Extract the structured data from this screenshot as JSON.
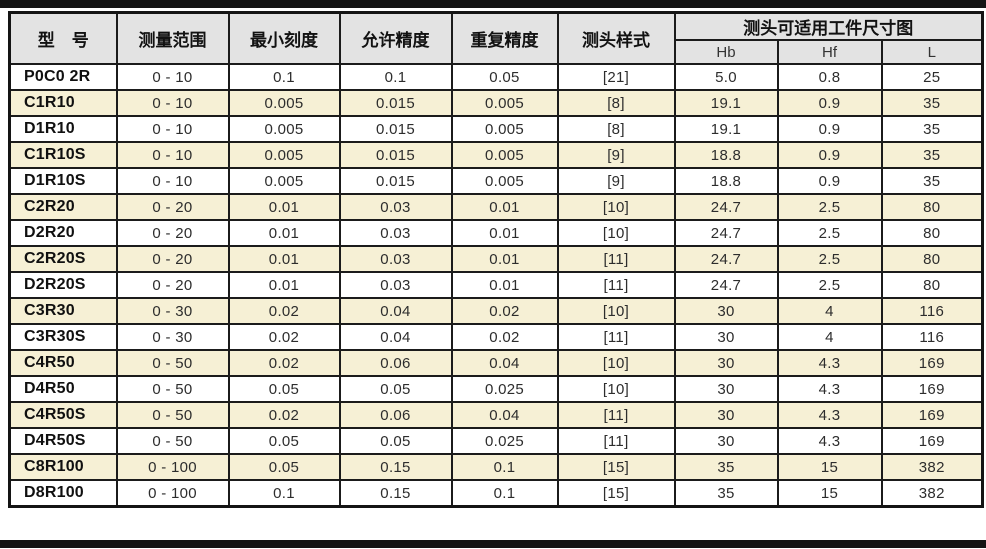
{
  "table": {
    "headers": [
      "型　号",
      "测量范围",
      "最小刻度",
      "允许精度",
      "重复精度",
      "测头样式"
    ],
    "group_header": "测头可适用工件尺寸图",
    "subheaders": [
      "Hb",
      "Hf",
      "L"
    ],
    "rows": [
      [
        "P0C0 2R",
        "0 - 10",
        "0.1",
        "0.1",
        "0.05",
        "[21]",
        "5.0",
        "0.8",
        "25"
      ],
      [
        "C1R10",
        "0 - 10",
        "0.005",
        "0.015",
        "0.005",
        "[8]",
        "19.1",
        "0.9",
        "35"
      ],
      [
        "D1R10",
        "0 - 10",
        "0.005",
        "0.015",
        "0.005",
        "[8]",
        "19.1",
        "0.9",
        "35"
      ],
      [
        "C1R10S",
        "0 - 10",
        "0.005",
        "0.015",
        "0.005",
        "[9]",
        "18.8",
        "0.9",
        "35"
      ],
      [
        "D1R10S",
        "0 - 10",
        "0.005",
        "0.015",
        "0.005",
        "[9]",
        "18.8",
        "0.9",
        "35"
      ],
      [
        "C2R20",
        "0 - 20",
        "0.01",
        "0.03",
        "0.01",
        "[10]",
        "24.7",
        "2.5",
        "80"
      ],
      [
        "D2R20",
        "0 - 20",
        "0.01",
        "0.03",
        "0.01",
        "[10]",
        "24.7",
        "2.5",
        "80"
      ],
      [
        "C2R20S",
        "0 - 20",
        "0.01",
        "0.03",
        "0.01",
        "[11]",
        "24.7",
        "2.5",
        "80"
      ],
      [
        "D2R20S",
        "0 - 20",
        "0.01",
        "0.03",
        "0.01",
        "[11]",
        "24.7",
        "2.5",
        "80"
      ],
      [
        "C3R30",
        "0 - 30",
        "0.02",
        "0.04",
        "0.02",
        "[10]",
        "30",
        "4",
        "116"
      ],
      [
        "C3R30S",
        "0 - 30",
        "0.02",
        "0.04",
        "0.02",
        "[11]",
        "30",
        "4",
        "116"
      ],
      [
        "C4R50",
        "0 - 50",
        "0.02",
        "0.06",
        "0.04",
        "[10]",
        "30",
        "4.3",
        "169"
      ],
      [
        "D4R50",
        "0 - 50",
        "0.05",
        "0.05",
        "0.025",
        "[10]",
        "30",
        "4.3",
        "169"
      ],
      [
        "C4R50S",
        "0 - 50",
        "0.02",
        "0.06",
        "0.04",
        "[11]",
        "30",
        "4.3",
        "169"
      ],
      [
        "D4R50S",
        "0 - 50",
        "0.05",
        "0.05",
        "0.025",
        "[11]",
        "30",
        "4.3",
        "169"
      ],
      [
        "C8R100",
        "0 - 100",
        "0.05",
        "0.15",
        "0.1",
        "[15]",
        "35",
        "15",
        "382"
      ],
      [
        "D8R100",
        "0 - 100",
        "0.1",
        "0.15",
        "0.1",
        "[15]",
        "35",
        "15",
        "382"
      ]
    ]
  },
  "colors": {
    "stripe_row_bg": "#f6f0d5",
    "header_bg": "#e3e3e3",
    "border": "#1b1b1b",
    "rule_bar": "#141414"
  }
}
